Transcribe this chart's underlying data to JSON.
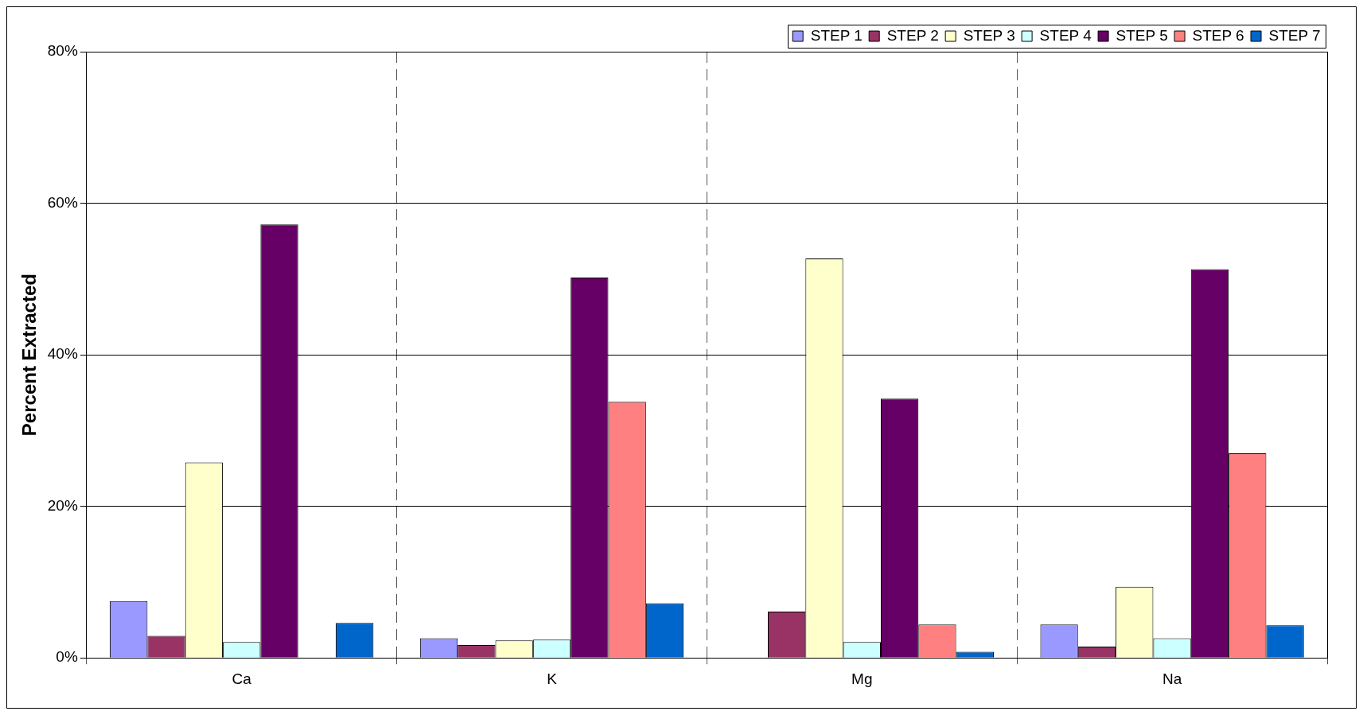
{
  "chart_data": {
    "type": "bar",
    "ylabel": "Percent Extracted",
    "categories": [
      "Ca",
      "K",
      "Mg",
      "Na"
    ],
    "series": [
      {
        "name": "STEP 1",
        "color": "#9999ff",
        "values": [
          7.5,
          2.6,
          null,
          4.4
        ]
      },
      {
        "name": "STEP 2",
        "color": "#993366",
        "values": [
          2.9,
          1.7,
          6.1,
          1.5
        ]
      },
      {
        "name": "STEP 3",
        "color": "#ffffcc",
        "values": [
          25.8,
          2.3,
          52.7,
          9.4
        ]
      },
      {
        "name": "STEP 4",
        "color": "#ccffff",
        "values": [
          2.1,
          2.4,
          2.1,
          2.6
        ]
      },
      {
        "name": "STEP 5",
        "color": "#660066",
        "values": [
          57.2,
          50.2,
          34.2,
          51.3
        ]
      },
      {
        "name": "STEP 6",
        "color": "#ff8080",
        "values": [
          null,
          33.8,
          4.4,
          27.0
        ]
      },
      {
        "name": "STEP 7",
        "color": "#0066cc",
        "values": [
          4.6,
          7.2,
          0.8,
          4.3
        ]
      }
    ],
    "ylim": [
      0,
      80
    ],
    "yticks": [
      {
        "value": 0,
        "label": "0%"
      },
      {
        "value": 20,
        "label": "20%"
      },
      {
        "value": 40,
        "label": "40%"
      },
      {
        "value": 60,
        "label": "60%"
      },
      {
        "value": 80,
        "label": "80%"
      }
    ],
    "grid": true,
    "legend": "top right"
  }
}
